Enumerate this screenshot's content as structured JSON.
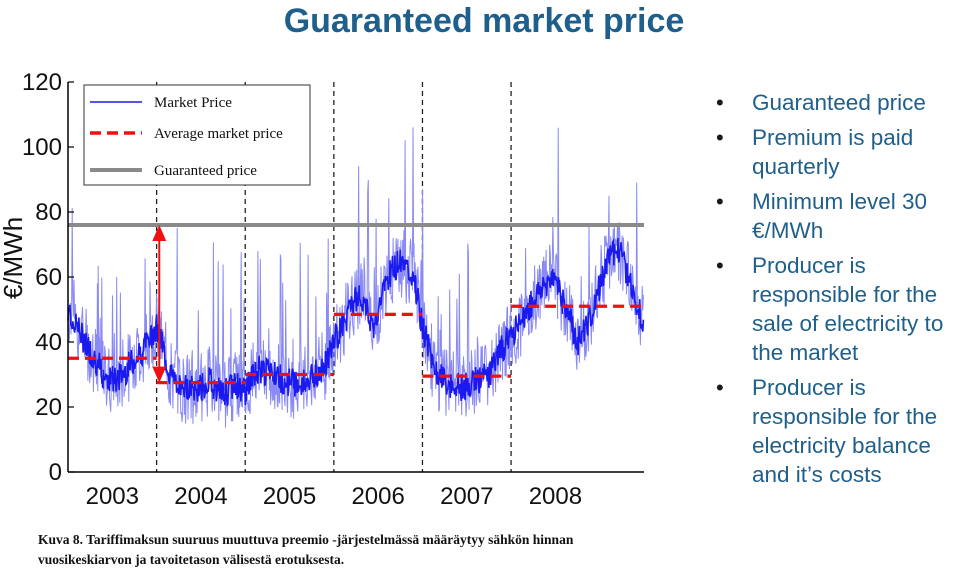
{
  "slide": {
    "title": "Guaranteed market price",
    "bullets": [
      "Guaranteed price",
      "Premium is paid quarterly",
      "Minimum level 30 €/MWh",
      "Producer is responsible for the sale of electricity to the market",
      "Producer is responsible for the electricity balance and it’s costs"
    ],
    "caption": {
      "line1": "Kuva 8. Tariffimaksun suuruus muuttuva preemio -järjestelmässä määräytyy sähkön hinnan",
      "line2": "vuosikeskiarvon ja tavoitetason välisestä erotuksesta."
    }
  },
  "chart_data": {
    "type": "line",
    "ylabel": "€/MWh",
    "ylim": [
      0,
      120
    ],
    "yticks": [
      0,
      20,
      40,
      60,
      80,
      100,
      120
    ],
    "x_categories": [
      "2003",
      "2004",
      "2005",
      "2006",
      "2007",
      "2008"
    ],
    "xlim": [
      2002.6,
      2009.1
    ],
    "legend": {
      "placement": "top-left",
      "entries": [
        "Market Price",
        "Average market price",
        "Guaranteed price"
      ]
    },
    "colors": {
      "market_price": "#1a1af0",
      "average_market_price": "#ee1111",
      "guaranteed_price": "#8a8a8a",
      "arrow": "#ee1111"
    },
    "guaranteed_price": 76,
    "year_separators": [
      2003.6,
      2004.6,
      2005.6,
      2006.6,
      2007.6
    ],
    "average_market_price": [
      {
        "from": 2002.6,
        "to": 2003.6,
        "value": 35
      },
      {
        "from": 2003.6,
        "to": 2004.6,
        "value": 27.5
      },
      {
        "from": 2004.6,
        "to": 2005.6,
        "value": 30
      },
      {
        "from": 2005.6,
        "to": 2006.6,
        "value": 48.5
      },
      {
        "from": 2006.6,
        "to": 2007.6,
        "value": 29.5
      },
      {
        "from": 2007.6,
        "to": 2009.1,
        "value": 51
      }
    ],
    "gap_arrow": {
      "x": 2004.6,
      "from": 76,
      "to": 27.5
    },
    "series": [
      {
        "name": "Market Price",
        "x": [
          2002.6,
          2002.75,
          2002.9,
          2003.0,
          2003.15,
          2003.3,
          2003.45,
          2003.6,
          2003.75,
          2003.9,
          2004.05,
          2004.2,
          2004.35,
          2004.5,
          2004.6,
          2004.75,
          2004.9,
          2005.05,
          2005.2,
          2005.35,
          2005.5,
          2005.6,
          2005.75,
          2005.9,
          2006.05,
          2006.2,
          2006.35,
          2006.5,
          2006.6,
          2006.75,
          2006.9,
          2007.05,
          2007.2,
          2007.35,
          2007.5,
          2007.6,
          2007.75,
          2007.9,
          2008.05,
          2008.2,
          2008.35,
          2008.5,
          2008.65,
          2008.8,
          2008.95,
          2009.1
        ],
        "values": [
          50,
          42,
          35,
          30,
          28,
          33,
          38,
          45,
          30,
          26,
          25,
          28,
          24,
          27,
          25,
          32,
          30,
          28,
          27,
          29,
          33,
          40,
          48,
          55,
          45,
          60,
          65,
          60,
          45,
          30,
          27,
          26,
          28,
          30,
          38,
          42,
          48,
          55,
          60,
          52,
          40,
          48,
          62,
          70,
          58,
          45
        ]
      }
    ]
  }
}
